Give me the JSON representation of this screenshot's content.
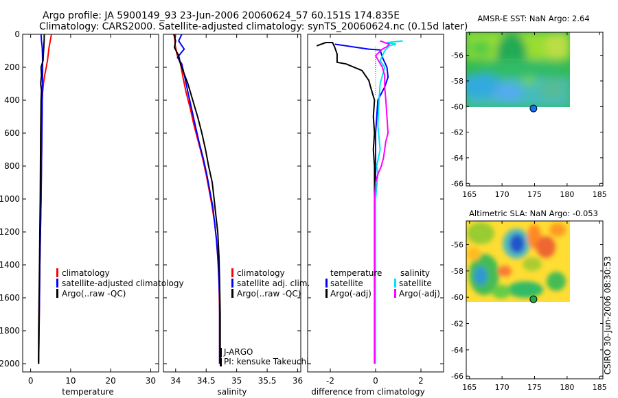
{
  "header": {
    "line1": "Argo profile: JA 5900149_93 23-Jun-2006 20060624_57 60.151S 174.835E",
    "line2": "Climatology: CARS2000. Satellite-adjusted climatology: synTS_20060624.nc (0.15d later)"
  },
  "side_stamp": "CSIRO 30-Jun-2006 08:30:53",
  "colors": {
    "red": "#ff0000",
    "blue": "#0000ff",
    "black": "#000000",
    "cyan": "#00e5ee",
    "magenta": "#ff00ff"
  },
  "chart_data": [
    {
      "id": "temperature",
      "type": "line",
      "xlabel": "temperature",
      "xlim": [
        -2,
        32
      ],
      "ylim": [
        2050,
        0
      ],
      "xticks": [
        0,
        10,
        20,
        30
      ],
      "yticks": [
        0,
        200,
        400,
        600,
        800,
        1000,
        1200,
        1400,
        1600,
        1800,
        2000
      ],
      "legend": [
        "climatology",
        "satellite-adjusted climatology",
        "Argo(..raw -QC)"
      ],
      "series": [
        {
          "name": "climatology",
          "color": "red",
          "points": [
            [
              5.2,
              0
            ],
            [
              4.9,
              40
            ],
            [
              4.6,
              80
            ],
            [
              4.4,
              120
            ],
            [
              4.2,
              160
            ],
            [
              3.9,
              200
            ],
            [
              3.5,
              250
            ],
            [
              3.2,
              300
            ],
            [
              3.0,
              350
            ],
            [
              2.9,
              400
            ],
            [
              2.8,
              600
            ],
            [
              2.7,
              800
            ],
            [
              2.6,
              1000
            ],
            [
              2.45,
              1200
            ],
            [
              2.3,
              1400
            ],
            [
              2.2,
              1600
            ],
            [
              2.1,
              1800
            ],
            [
              2.0,
              2000
            ]
          ]
        },
        {
          "name": "satellite-adjusted climatology",
          "color": "blue",
          "points": [
            [
              2.6,
              0
            ],
            [
              2.7,
              40
            ],
            [
              2.9,
              80
            ],
            [
              2.95,
              120
            ],
            [
              3.0,
              200
            ],
            [
              2.95,
              300
            ],
            [
              2.9,
              400
            ],
            [
              2.8,
              600
            ],
            [
              2.7,
              800
            ],
            [
              2.6,
              1000
            ],
            [
              2.45,
              1200
            ],
            [
              2.3,
              1400
            ],
            [
              2.2,
              1600
            ],
            [
              2.1,
              1800
            ],
            [
              2.0,
              2000
            ]
          ]
        },
        {
          "name": "Argo(..raw -QC)",
          "color": "black",
          "points": [
            [
              3.4,
              0
            ],
            [
              3.4,
              30
            ],
            [
              3.3,
              70
            ],
            [
              3.2,
              110
            ],
            [
              3.1,
              160
            ],
            [
              2.6,
              200
            ],
            [
              2.7,
              250
            ],
            [
              2.5,
              300
            ],
            [
              2.7,
              340
            ],
            [
              2.6,
              400
            ],
            [
              2.5,
              600
            ],
            [
              2.45,
              800
            ],
            [
              2.4,
              1000
            ],
            [
              2.3,
              1200
            ],
            [
              2.2,
              1400
            ],
            [
              2.1,
              1600
            ],
            [
              2.0,
              1800
            ],
            [
              1.95,
              2000
            ]
          ]
        }
      ]
    },
    {
      "id": "salinity",
      "type": "line",
      "xlabel": "salinity",
      "xlim": [
        33.8,
        36.05
      ],
      "ylim": [
        2050,
        0
      ],
      "xticks": [
        34,
        34.5,
        35,
        35.5,
        36
      ],
      "yticks": [
        0,
        200,
        400,
        600,
        800,
        1000,
        1200,
        1400,
        1600,
        1800,
        2000
      ],
      "legend": [
        "climatology",
        "satellite adj. clim.",
        "Argo(..raw -QC)"
      ],
      "annotation": [
        "J-ARGO",
        "PI: kensuke Takeuchi"
      ],
      "series": [
        {
          "name": "climatology",
          "color": "red",
          "points": [
            [
              33.98,
              0
            ],
            [
              33.99,
              60
            ],
            [
              34.02,
              120
            ],
            [
              34.08,
              180
            ],
            [
              34.12,
              260
            ],
            [
              34.17,
              350
            ],
            [
              34.24,
              450
            ],
            [
              34.3,
              550
            ],
            [
              34.37,
              650
            ],
            [
              34.44,
              750
            ],
            [
              34.5,
              850
            ],
            [
              34.55,
              950
            ],
            [
              34.6,
              1050
            ],
            [
              34.64,
              1150
            ],
            [
              34.67,
              1250
            ],
            [
              34.69,
              1350
            ],
            [
              34.71,
              1500
            ],
            [
              34.72,
              1700
            ],
            [
              34.72,
              2000
            ]
          ]
        },
        {
          "name": "satellite adj. clim.",
          "color": "blue",
          "points": [
            [
              34.1,
              0
            ],
            [
              34.05,
              40
            ],
            [
              34.14,
              90
            ],
            [
              34.03,
              140
            ],
            [
              34.1,
              180
            ],
            [
              34.15,
              260
            ],
            [
              34.2,
              350
            ],
            [
              34.26,
              450
            ],
            [
              34.32,
              550
            ],
            [
              34.38,
              650
            ],
            [
              34.45,
              750
            ],
            [
              34.51,
              850
            ],
            [
              34.56,
              950
            ],
            [
              34.61,
              1050
            ],
            [
              34.64,
              1150
            ],
            [
              34.67,
              1250
            ],
            [
              34.7,
              1400
            ],
            [
              34.72,
              1600
            ],
            [
              34.72,
              2000
            ]
          ]
        },
        {
          "name": "Argo(..raw -QC)",
          "color": "black",
          "points": [
            [
              33.97,
              0
            ],
            [
              34.0,
              40
            ],
            [
              33.98,
              80
            ],
            [
              34.05,
              130
            ],
            [
              34.08,
              180
            ],
            [
              34.13,
              230
            ],
            [
              34.2,
              300
            ],
            [
              34.28,
              400
            ],
            [
              34.36,
              500
            ],
            [
              34.43,
              600
            ],
            [
              34.49,
              700
            ],
            [
              34.54,
              800
            ],
            [
              34.6,
              900
            ],
            [
              34.63,
              1000
            ],
            [
              34.66,
              1100
            ],
            [
              34.69,
              1200
            ],
            [
              34.71,
              1350
            ],
            [
              34.72,
              1500
            ],
            [
              34.73,
              1700
            ],
            [
              34.73,
              2000
            ]
          ]
        }
      ]
    },
    {
      "id": "difference",
      "type": "line",
      "xlabel": "difference from climatology",
      "xlim": [
        -3,
        3
      ],
      "ylim": [
        2050,
        0
      ],
      "xticks": [
        -2,
        0,
        2
      ],
      "yticks": [
        0,
        200,
        400,
        600,
        800,
        1000,
        1200,
        1400,
        1600,
        1800,
        2000
      ],
      "legend_headers": [
        "temperature",
        "salinity"
      ],
      "legend": [
        "satellite",
        "Argo(-adj)",
        "satellite",
        "Argo(-adj)"
      ],
      "series": [
        {
          "name": "temperature satellite",
          "color": "blue",
          "points": [
            [
              -1.8,
              60
            ],
            [
              -0.8,
              80
            ],
            [
              -0.3,
              90
            ],
            [
              0.2,
              95
            ],
            [
              0.3,
              140
            ],
            [
              0.5,
              200
            ],
            [
              0.55,
              260
            ],
            [
              0.4,
              320
            ],
            [
              0.1,
              400
            ],
            [
              0.0,
              600
            ],
            [
              0.0,
              800
            ],
            [
              0.0,
              2000
            ]
          ]
        },
        {
          "name": "temperature Argo(-adj)",
          "color": "black",
          "points": [
            [
              -2.6,
              70
            ],
            [
              -2.2,
              50
            ],
            [
              -1.9,
              50
            ],
            [
              -1.8,
              80
            ],
            [
              -1.7,
              120
            ],
            [
              -1.7,
              170
            ],
            [
              -1.3,
              180
            ],
            [
              -0.6,
              220
            ],
            [
              -0.3,
              280
            ],
            [
              -0.2,
              330
            ],
            [
              -0.05,
              400
            ],
            [
              -0.1,
              500
            ],
            [
              -0.05,
              600
            ],
            [
              -0.1,
              700
            ],
            [
              -0.05,
              800
            ],
            [
              -0.05,
              1000
            ],
            [
              -0.05,
              1500
            ],
            [
              -0.05,
              2000
            ]
          ]
        },
        {
          "name": "salinity satellite",
          "color": "cyan",
          "points": [
            [
              1.2,
              40
            ],
            [
              0.5,
              50
            ],
            [
              0.9,
              60
            ],
            [
              0.6,
              70
            ],
            [
              0.4,
              100
            ],
            [
              0.2,
              160
            ],
            [
              0.4,
              200
            ],
            [
              0.2,
              300
            ],
            [
              0.15,
              400
            ],
            [
              0.1,
              550
            ],
            [
              0.2,
              700
            ],
            [
              0.05,
              800
            ],
            [
              0.1,
              850
            ],
            [
              0.0,
              1000
            ],
            [
              0.0,
              2000
            ]
          ]
        },
        {
          "name": "salinity Argo(-adj)",
          "color": "magenta",
          "points": [
            [
              0.2,
              40
            ],
            [
              0.6,
              60
            ],
            [
              0.5,
              75
            ],
            [
              0.3,
              90
            ],
            [
              0.0,
              130
            ],
            [
              0.3,
              200
            ],
            [
              0.4,
              250
            ],
            [
              0.4,
              320
            ],
            [
              0.45,
              400
            ],
            [
              0.5,
              500
            ],
            [
              0.55,
              600
            ],
            [
              0.45,
              650
            ],
            [
              0.4,
              700
            ],
            [
              0.35,
              750
            ],
            [
              0.25,
              800
            ],
            [
              0.1,
              850
            ],
            [
              0.0,
              900
            ],
            [
              -0.05,
              1000
            ],
            [
              -0.05,
              2000
            ]
          ]
        }
      ]
    },
    {
      "id": "amsre_sst",
      "type": "heatmap",
      "title": "AMSR-E SST: NaN Argo: 2.64",
      "xlim": [
        164.5,
        185.5
      ],
      "ylim": [
        -66.2,
        -54.2
      ],
      "xticks": [
        165,
        170,
        175,
        180,
        185
      ],
      "yticks": [
        -56,
        -58,
        -60,
        -62,
        -64,
        -66
      ],
      "data_extent": {
        "lon": [
          164.5,
          180
        ],
        "lat": [
          -60,
          -54.2
        ]
      },
      "argo_position": {
        "lon": 174.835,
        "lat": -60.151
      }
    },
    {
      "id": "altimetric_sla",
      "type": "heatmap",
      "title": "Altimetric SLA: NaN Argo: -0.053",
      "xlim": [
        164.5,
        185.5
      ],
      "ylim": [
        -66.2,
        -54.2
      ],
      "xticks": [
        165,
        170,
        175,
        180,
        185
      ],
      "yticks": [
        -56,
        -58,
        -60,
        -62,
        -64,
        -66
      ],
      "data_extent": {
        "lon": [
          164.5,
          180
        ],
        "lat": [
          -60,
          -54.2
        ]
      },
      "argo_position": {
        "lon": 174.835,
        "lat": -60.151
      }
    }
  ]
}
